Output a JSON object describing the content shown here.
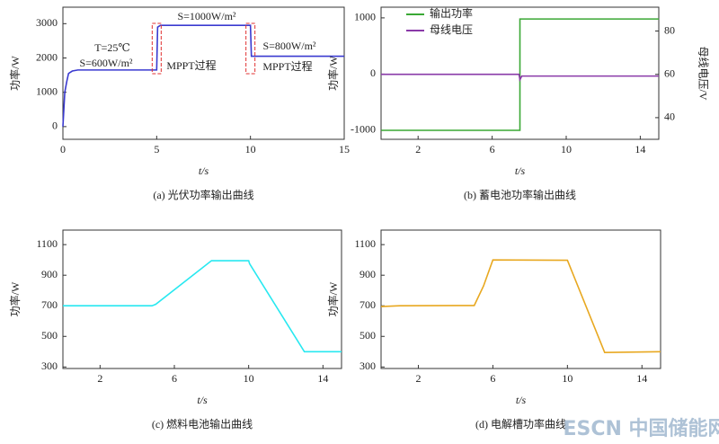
{
  "chart_data": [
    {
      "type": "line",
      "caption": "(a) 光伏功率输出曲线",
      "xlabel": "t/s",
      "ylabel": "功率/W",
      "xlim": [
        0,
        15
      ],
      "ylim": [
        -370,
        3480
      ],
      "xticks": [
        0,
        5,
        10,
        15
      ],
      "yticks": [
        0,
        1000,
        2000,
        3000
      ],
      "annotations": [
        "T=25℃",
        "S=600W/m²",
        "S=1000W/m²",
        "MPPT过程",
        "S=800W/m²",
        "MPPT过程"
      ],
      "series": [
        {
          "name": "光伏功率",
          "color": "#3a3ad0",
          "x": [
            0,
            0.05,
            0.1,
            0.2,
            0.3,
            0.5,
            0.8,
            1,
            5,
            5.05,
            5.2,
            10,
            10.05,
            10.2,
            15
          ],
          "values": [
            0,
            500,
            1000,
            1300,
            1550,
            1620,
            1650,
            1650,
            1650,
            2900,
            2950,
            2950,
            2050,
            2050,
            2050
          ]
        }
      ]
    },
    {
      "type": "line",
      "caption": "(b) 蓄电池功率输出曲线",
      "xlabel": "t/s",
      "ylabel": "功率/W",
      "y2label": "母线电压/V",
      "xlim": [
        0,
        15
      ],
      "ylim": [
        -1160,
        1190
      ],
      "xticks": [
        2,
        6,
        10,
        14
      ],
      "yticks": [
        -1000,
        0,
        1000
      ],
      "y2lim": [
        30,
        91
      ],
      "y2ticks": [
        40,
        60,
        80
      ],
      "legend": "upper left",
      "series": [
        {
          "name": "输出功率",
          "color": "#3aa834",
          "x": [
            0,
            7.5,
            7.5,
            15
          ],
          "values": [
            -1000,
            -1000,
            980,
            980
          ]
        },
        {
          "name": "母线电压",
          "color": "#8a3aa8",
          "axis": "y2",
          "x": [
            0,
            7.45,
            7.5,
            7.6,
            15
          ],
          "values": [
            60,
            60,
            57.5,
            59.2,
            59.2
          ]
        }
      ]
    },
    {
      "type": "line",
      "caption": "(c) 燃料电池输出曲线",
      "xlabel": "t/s",
      "ylabel": "功率/W",
      "xlim": [
        0,
        15
      ],
      "ylim": [
        290,
        1195
      ],
      "xticks": [
        2,
        6,
        10,
        14
      ],
      "yticks": [
        300,
        500,
        700,
        900,
        1100
      ],
      "series": [
        {
          "name": "燃料电池",
          "color": "#28e8f0",
          "x": [
            0,
            4.8,
            5,
            8,
            10,
            10.05,
            13,
            15
          ],
          "values": [
            700,
            700,
            710,
            995,
            995,
            975,
            400,
            400
          ]
        }
      ]
    },
    {
      "type": "line",
      "caption": "(d) 电解槽功率曲线",
      "xlabel": "t/s",
      "ylabel": "功率/W",
      "xlim": [
        0,
        15
      ],
      "ylim": [
        290,
        1195
      ],
      "xticks": [
        2,
        6,
        10,
        14
      ],
      "yticks": [
        300,
        500,
        700,
        900,
        1100
      ],
      "series": [
        {
          "name": "电解槽",
          "color": "#e8a820",
          "x": [
            0,
            1,
            5,
            5.5,
            6,
            10,
            12,
            15
          ],
          "values": [
            695,
            700,
            702,
            830,
            1000,
            998,
            395,
            400
          ]
        }
      ]
    }
  ],
  "watermark": "ESCN 中国储能网"
}
